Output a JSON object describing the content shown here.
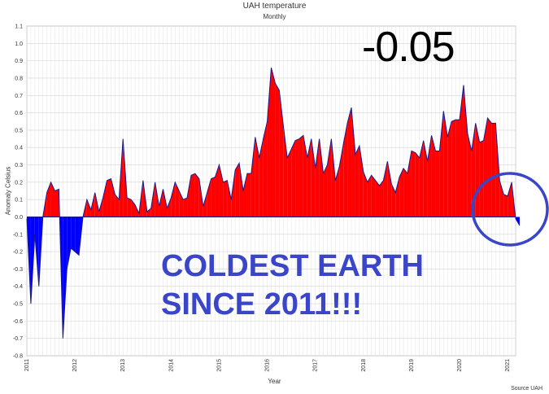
{
  "chart_data": {
    "type": "area",
    "title": "UAH temperature",
    "subtitle": "Monthly",
    "xlabel": "Year",
    "ylabel": "Anomaly Celsius",
    "source": "Source UAH",
    "x_start": "2011-01",
    "x_ticks": [
      "2011",
      "2012",
      "2013",
      "2014",
      "2015",
      "2016",
      "2017",
      "2018",
      "2019",
      "2020",
      "2021"
    ],
    "ylim": [
      -0.8,
      1.1
    ],
    "y_ticks": [
      "1.1",
      "1.0",
      "0.9",
      "0.8",
      "0.7",
      "0.6",
      "0.5",
      "0.4",
      "0.3",
      "0.2",
      "0.1",
      "0.0",
      "-0.1",
      "-0.2",
      "-0.3",
      "-0.4",
      "-0.5",
      "-0.6",
      "-0.7",
      "-0.8"
    ],
    "grid": true,
    "colors": {
      "positive": "#ff0000",
      "negative": "#0000ff",
      "line": "#1a1a8c"
    },
    "values": [
      -0.01,
      -0.5,
      -0.1,
      -0.4,
      0.0,
      0.14,
      0.2,
      0.15,
      0.16,
      -0.7,
      -0.3,
      -0.18,
      -0.2,
      -0.22,
      0.0,
      0.1,
      0.04,
      0.14,
      0.03,
      0.11,
      0.21,
      0.22,
      0.13,
      0.1,
      0.45,
      0.11,
      0.1,
      0.07,
      0.02,
      0.21,
      0.03,
      0.05,
      0.2,
      0.06,
      0.16,
      0.05,
      0.11,
      0.2,
      0.15,
      0.1,
      0.11,
      0.24,
      0.25,
      0.22,
      0.06,
      0.14,
      0.22,
      0.23,
      0.3,
      0.2,
      0.21,
      0.1,
      0.27,
      0.31,
      0.15,
      0.25,
      0.25,
      0.46,
      0.34,
      0.45,
      0.55,
      0.86,
      0.77,
      0.73,
      0.53,
      0.34,
      0.39,
      0.44,
      0.45,
      0.47,
      0.34,
      0.45,
      0.28,
      0.45,
      0.25,
      0.3,
      0.45,
      0.21,
      0.29,
      0.42,
      0.54,
      0.63,
      0.36,
      0.41,
      0.26,
      0.2,
      0.24,
      0.21,
      0.18,
      0.21,
      0.32,
      0.19,
      0.14,
      0.23,
      0.28,
      0.25,
      0.38,
      0.37,
      0.34,
      0.44,
      0.32,
      0.47,
      0.38,
      0.38,
      0.61,
      0.46,
      0.55,
      0.56,
      0.56,
      0.76,
      0.48,
      0.38,
      0.54,
      0.43,
      0.44,
      0.57,
      0.54,
      0.54,
      0.21,
      0.13,
      0.12,
      0.2,
      -0.01,
      -0.05
    ],
    "annotations": {
      "big_value": "-0.05",
      "headline": [
        "COLDEST EARTH",
        "SINCE 2011!!!"
      ],
      "circle_color": "#3a45c8"
    }
  }
}
